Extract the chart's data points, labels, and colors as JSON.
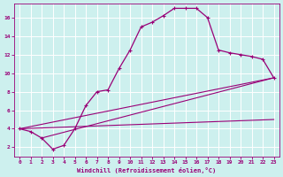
{
  "xlabel": "Windchill (Refroidissement éolien,°C)",
  "bg_color": "#cdf0ee",
  "line_color": "#990077",
  "grid_color": "#ffffff",
  "xlim": [
    -0.5,
    23.5
  ],
  "ylim": [
    1.0,
    17.5
  ],
  "xticks": [
    0,
    1,
    2,
    3,
    4,
    5,
    6,
    7,
    8,
    9,
    10,
    11,
    12,
    13,
    14,
    15,
    16,
    17,
    18,
    19,
    20,
    21,
    22,
    23
  ],
  "yticks": [
    2,
    4,
    6,
    8,
    10,
    12,
    14,
    16
  ],
  "curve_x": [
    0,
    1,
    2,
    3,
    4,
    5,
    6,
    7,
    8,
    9,
    10,
    11,
    12,
    13,
    14,
    15,
    16,
    17,
    18,
    19,
    20,
    21,
    22,
    23
  ],
  "curve_y": [
    4.0,
    3.7,
    3.0,
    1.8,
    2.2,
    4.0,
    6.5,
    8.0,
    8.2,
    10.5,
    12.5,
    15.0,
    15.5,
    16.2,
    17.0,
    17.0,
    17.0,
    16.0,
    12.5,
    12.2,
    12.0,
    11.8,
    11.5,
    9.5
  ],
  "line1_x": [
    0,
    23
  ],
  "line1_y": [
    4.0,
    5.0
  ],
  "line2_x": [
    2,
    23
  ],
  "line2_y": [
    3.0,
    9.5
  ],
  "line3_x": [
    0,
    23
  ],
  "line3_y": [
    4.0,
    9.5
  ]
}
